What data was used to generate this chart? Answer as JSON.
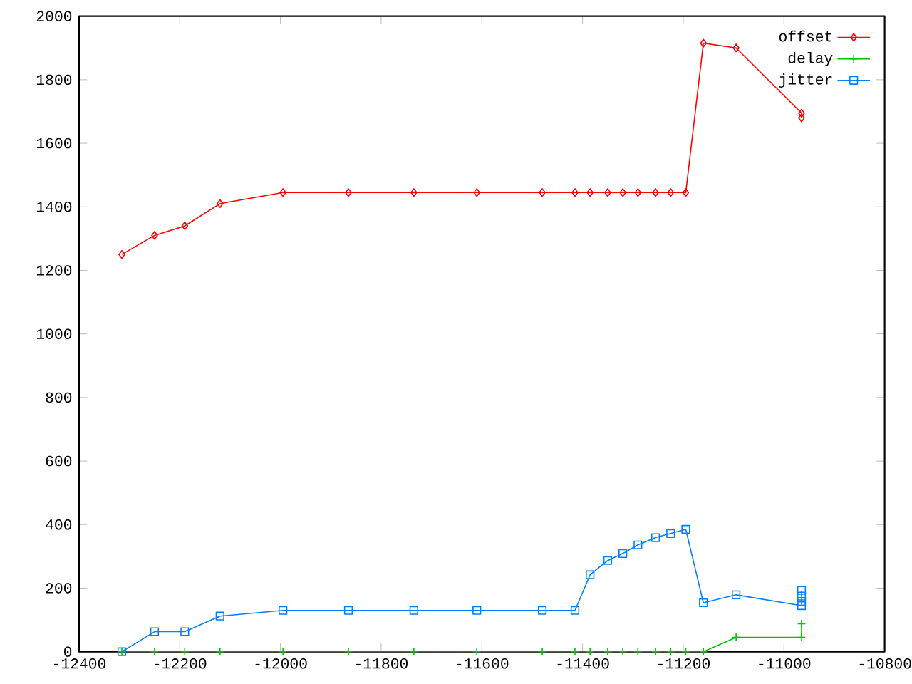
{
  "chart_data": {
    "type": "line",
    "xlim": [
      -12400,
      -10800
    ],
    "ylim": [
      0,
      2000
    ],
    "xticks": [
      -12400,
      -12200,
      -12000,
      -11800,
      -11600,
      -11400,
      -11200,
      -11000,
      -10800
    ],
    "yticks": [
      0,
      200,
      400,
      600,
      800,
      1000,
      1200,
      1400,
      1600,
      1800,
      2000
    ],
    "grid": false,
    "legend": "top right",
    "series": [
      {
        "name": "offset",
        "color": "#ff0000",
        "marker": "diamond",
        "x": [
          -12315,
          -12250,
          -12190,
          -12120,
          -11995,
          -11865,
          -11735,
          -11610,
          -11480,
          -11415,
          -11385,
          -11350,
          -11320,
          -11290,
          -11255,
          -11225,
          -11195,
          -11160,
          -11095,
          -10965,
          -10965
        ],
        "values": [
          1250,
          1310,
          1340,
          1410,
          1445,
          1445,
          1445,
          1445,
          1445,
          1445,
          1445,
          1445,
          1445,
          1445,
          1445,
          1445,
          1445,
          1915,
          1900,
          1695,
          1680
        ]
      },
      {
        "name": "delay",
        "color": "#00c000",
        "marker": "cross",
        "x": [
          -12315,
          -12250,
          -12190,
          -12120,
          -11995,
          -11865,
          -11735,
          -11610,
          -11480,
          -11415,
          -11385,
          -11350,
          -11320,
          -11290,
          -11255,
          -11225,
          -11195,
          -11160,
          -11095,
          -10965,
          -10965
        ],
        "values": [
          0,
          0,
          0,
          0,
          0,
          0,
          0,
          0,
          0,
          0,
          0,
          0,
          0,
          0,
          0,
          0,
          0,
          0,
          45,
          45,
          88
        ]
      },
      {
        "name": "jitter",
        "color": "#0080ff",
        "marker": "square",
        "x": [
          -12315,
          -12250,
          -12190,
          -12120,
          -11995,
          -11865,
          -11735,
          -11610,
          -11480,
          -11415,
          -11385,
          -11350,
          -11320,
          -11290,
          -11255,
          -11225,
          -11195,
          -11160,
          -11095,
          -10965,
          -10965,
          -10965,
          -10965
        ],
        "values": [
          0,
          63,
          63,
          112,
          130,
          130,
          130,
          130,
          130,
          130,
          242,
          287,
          309,
          336,
          359,
          372,
          385,
          154,
          179,
          145,
          158,
          175,
          193
        ]
      }
    ]
  }
}
